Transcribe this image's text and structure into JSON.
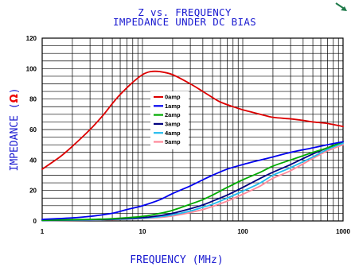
{
  "chart_data": {
    "type": "line",
    "title_line1": "Z vs. FREQUENCY",
    "title_line2": "IMPEDANCE UNDER DC BIAS",
    "xlabel": "FREQUENCY (MHz)",
    "ylabel_text": "IMPEDANCE (",
    "ylabel_symbol": "Ω",
    "ylabel_close": ")",
    "x_scale": "log",
    "xlim": [
      1,
      1000
    ],
    "ylim": [
      0,
      120
    ],
    "grid": true,
    "legend_position": "center",
    "x_ticks": [
      {
        "value": 1,
        "label": "1"
      },
      {
        "value": 10,
        "label": "10"
      },
      {
        "value": 100,
        "label": "100"
      },
      {
        "value": 1000,
        "label": "1000"
      }
    ],
    "y_ticks": [
      {
        "value": 0,
        "label": "0"
      },
      {
        "value": 20,
        "label": "20"
      },
      {
        "value": 40,
        "label": "40"
      },
      {
        "value": 60,
        "label": "60"
      },
      {
        "value": 80,
        "label": "80"
      },
      {
        "value": 100,
        "label": "100"
      },
      {
        "value": 120,
        "label": "120"
      }
    ],
    "series": [
      {
        "name": "0amp",
        "color": "#dd0000",
        "x": [
          1,
          1.5,
          2,
          3,
          4,
          5,
          6,
          8,
          10,
          12,
          15,
          20,
          30,
          40,
          50,
          60,
          80,
          100,
          150,
          200,
          300,
          400,
          500,
          700,
          1000
        ],
        "y": [
          34,
          42,
          49,
          60,
          69,
          77,
          83,
          91,
          96,
          98,
          98,
          96,
          90,
          85,
          81,
          78,
          75,
          73,
          70,
          68,
          67,
          66,
          65,
          64,
          62
        ]
      },
      {
        "name": "1amp",
        "color": "#0000ee",
        "x": [
          1,
          2,
          3,
          5,
          7,
          10,
          15,
          20,
          30,
          40,
          50,
          70,
          100,
          150,
          200,
          300,
          500,
          700,
          1000
        ],
        "y": [
          1,
          2,
          3,
          5,
          7.5,
          10,
          14,
          18,
          23,
          27,
          30,
          34,
          37,
          40,
          42,
          45,
          48,
          50,
          52
        ]
      },
      {
        "name": "2amp",
        "color": "#00aa00",
        "x": [
          1,
          3,
          5,
          10,
          15,
          20,
          30,
          40,
          50,
          70,
          100,
          150,
          200,
          300,
          500,
          700,
          1000
        ],
        "y": [
          0.5,
          1,
          1.5,
          3,
          5,
          7,
          11,
          14,
          17,
          22,
          27,
          32,
          36,
          40,
          45,
          48,
          52
        ]
      },
      {
        "name": "3amp",
        "color": "#000080",
        "x": [
          1,
          3,
          5,
          10,
          15,
          20,
          30,
          40,
          50,
          70,
          100,
          150,
          200,
          300,
          500,
          700,
          1000
        ],
        "y": [
          0.4,
          0.8,
          1.2,
          2.2,
          3.5,
          5,
          8,
          10.5,
          13,
          17,
          22,
          28,
          32,
          37,
          44,
          48,
          52
        ]
      },
      {
        "name": "4amp",
        "color": "#22bbee",
        "x": [
          1,
          3,
          5,
          10,
          15,
          20,
          30,
          40,
          50,
          70,
          100,
          150,
          200,
          300,
          500,
          700,
          1000
        ],
        "y": [
          0.3,
          0.6,
          1,
          1.8,
          2.8,
          4,
          6.5,
          9,
          11,
          15,
          19.5,
          25,
          30,
          35,
          42,
          47,
          51
        ]
      },
      {
        "name": "5amp",
        "color": "#ff8899",
        "x": [
          1,
          3,
          5,
          10,
          15,
          20,
          30,
          40,
          50,
          70,
          100,
          150,
          200,
          300,
          500,
          700,
          1000
        ],
        "y": [
          0.2,
          0.5,
          0.8,
          1.5,
          2.3,
          3.3,
          5.5,
          7.5,
          9.5,
          13,
          17.5,
          23,
          28,
          33,
          41,
          46,
          50
        ]
      }
    ]
  }
}
